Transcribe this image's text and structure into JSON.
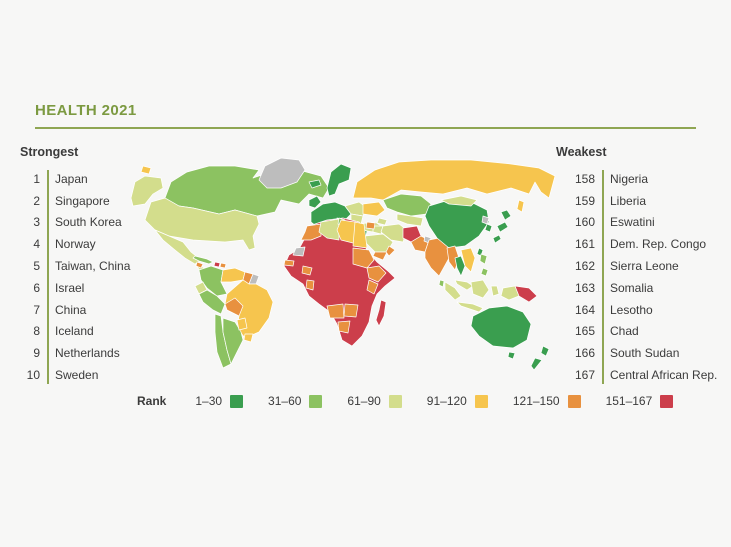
{
  "theme": {
    "accent": "#7c9a41",
    "rule": "#8fa653",
    "text": "#3b3b3b",
    "background": "#f7f7f6"
  },
  "chart_data": {
    "type": "heatmap",
    "subtype": "choropleth_world_map",
    "title": "HEALTH 2021",
    "strongest_heading": "Strongest",
    "weakest_heading": "Weakest",
    "strongest": [
      {
        "rank": "1",
        "country": "Japan"
      },
      {
        "rank": "2",
        "country": "Singapore"
      },
      {
        "rank": "3",
        "country": "South Korea"
      },
      {
        "rank": "4",
        "country": "Norway"
      },
      {
        "rank": "5",
        "country": "Taiwan, China"
      },
      {
        "rank": "6",
        "country": "Israel"
      },
      {
        "rank": "7",
        "country": "China"
      },
      {
        "rank": "8",
        "country": "Iceland"
      },
      {
        "rank": "9",
        "country": "Netherlands"
      },
      {
        "rank": "10",
        "country": "Sweden"
      }
    ],
    "weakest": [
      {
        "rank": "158",
        "country": "Nigeria"
      },
      {
        "rank": "159",
        "country": "Liberia"
      },
      {
        "rank": "160",
        "country": "Eswatini"
      },
      {
        "rank": "161",
        "country": "Dem. Rep. Congo"
      },
      {
        "rank": "162",
        "country": "Sierra Leone"
      },
      {
        "rank": "163",
        "country": "Somalia"
      },
      {
        "rank": "164",
        "country": "Lesotho"
      },
      {
        "rank": "165",
        "country": "Chad"
      },
      {
        "rank": "166",
        "country": "South Sudan"
      },
      {
        "rank": "167",
        "country": "Central African Rep."
      }
    ],
    "legend": {
      "label": "Rank",
      "buckets": [
        {
          "range": "1–30",
          "key": "1-30",
          "color": "#3a9e4f"
        },
        {
          "range": "31–60",
          "key": "31-60",
          "color": "#8cc261"
        },
        {
          "range": "61–90",
          "key": "61-90",
          "color": "#d3dd8c"
        },
        {
          "range": "91–120",
          "key": "91-120",
          "color": "#f6c54e"
        },
        {
          "range": "121–150",
          "key": "121-150",
          "color": "#e8913f"
        },
        {
          "range": "151–167",
          "key": "151-167",
          "color": "#cc3e4b"
        }
      ],
      "no_data_color": "#bdbdbd"
    },
    "region_buckets": {
      "aleutian_spot": "91-120",
      "alaska": "61-90",
      "canada": "31-60",
      "greenland": "no-data",
      "iceland": "1-30",
      "usa": "61-90",
      "mexico": "61-90",
      "central_america": "61-90",
      "guatemala": "121-150",
      "cuba": "31-60",
      "haiti": "151-167",
      "dominican_republic": "121-150",
      "colombia": "31-60",
      "venezuela": "91-120",
      "guyana": "121-150",
      "suriname": "no-data",
      "ecuador": "61-90",
      "peru": "31-60",
      "brazil": "91-120",
      "bolivia": "121-150",
      "paraguay": "91-120",
      "uruguay": "91-120",
      "chile": "31-60",
      "argentina": "31-60",
      "united_kingdom": "1-30",
      "scandinavia": "1-30",
      "western_europe": "1-30",
      "eastern_europe": "61-90",
      "balkans": "61-90",
      "ukraine": "91-120",
      "turkey": "61-90",
      "russia": "91-120",
      "sakhalin": "91-120",
      "kazakhstan": "31-60",
      "central_asia": "61-90",
      "caucasus": "61-90",
      "iran": "61-90",
      "iraq": "61-90",
      "syria": "121-150",
      "israel": "1-30",
      "saudi_arabia": "61-90",
      "yemen": "121-150",
      "oman": "121-150",
      "afghanistan": "151-167",
      "pakistan": "121-150",
      "kashmir": "no-data",
      "india": "121-150",
      "sri_lanka": "31-60",
      "china": "1-30",
      "mongolia": "61-90",
      "north_korea": "no-data",
      "south_korea": "1-30",
      "japan": "1-30",
      "taiwan": "1-30",
      "myanmar": "121-150",
      "thailand": "1-30",
      "laos_vietnam": "91-120",
      "malaysia": "61-90",
      "sumatra": "61-90",
      "java": "61-90",
      "borneo": "61-90",
      "sulawesi": "61-90",
      "philippines": "31-60",
      "west_new_guinea": "61-90",
      "papua_new_guinea": "151-167",
      "australia": "1-30",
      "tasmania": "1-30",
      "new_zealand": "1-30",
      "central_africa": "151-167",
      "morocco": "121-150",
      "algeria": "61-90",
      "tunisia": "31-60",
      "libya": "91-120",
      "egypt": "91-120",
      "western_sahara": "no-data",
      "senegal": "121-150",
      "burkina_faso": "121-150",
      "ghana": "121-150",
      "sudan": "121-150",
      "ethiopia": "121-150",
      "kenya": "121-150",
      "angola": "121-150",
      "zambia": "121-150",
      "botswana": "121-150",
      "madagascar": "151-167"
    }
  }
}
